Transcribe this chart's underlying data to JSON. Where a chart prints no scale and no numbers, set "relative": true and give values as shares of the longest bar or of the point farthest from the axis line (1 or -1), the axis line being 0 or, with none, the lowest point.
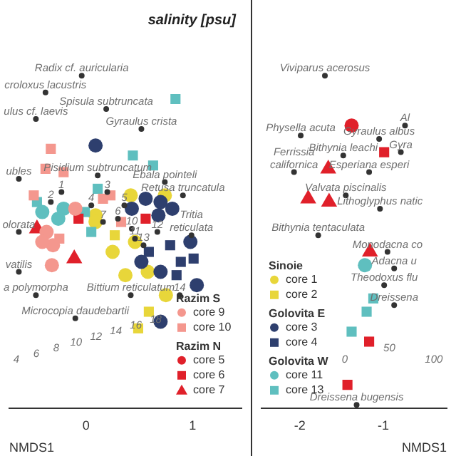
{
  "chart_data": [
    {
      "type": "scatter",
      "title": "salinity [psu]",
      "xlabel": "NMDS1",
      "xlim": [
        -0.72,
        1.46
      ],
      "xticks": [
        0,
        1
      ],
      "relative": true,
      "tick_labels": "x",
      "legend": "bottom right",
      "series": [
        {
          "name": "core 9",
          "color": "#f4978e",
          "marker": "circle",
          "x": [
            -0.1,
            -0.37,
            -0.31,
            -0.32,
            -0.41
          ],
          "values": [
            0.6,
            0.53,
            0.49,
            0.43,
            0.5
          ]
        },
        {
          "name": "core 10",
          "color": "#f4978e",
          "marker": "square",
          "x": [
            -0.33,
            -0.38,
            -0.21,
            0.23,
            0.16,
            -0.49,
            0.33,
            -0.25
          ],
          "values": [
            0.78,
            0.72,
            0.71,
            0.64,
            0.63,
            0.64,
            0.56,
            0.51
          ]
        },
        {
          "name": "core 5",
          "color": "#e0202a",
          "marker": "circle"
        },
        {
          "name": "core 6",
          "color": "#e0202a",
          "marker": "square",
          "x": [
            0.56,
            -0.07
          ],
          "values": [
            0.57,
            0.57
          ]
        },
        {
          "name": "core 7",
          "color": "#e0202a",
          "marker": "triangle",
          "x": [
            -0.46,
            -0.11
          ],
          "values": [
            0.54,
            0.45
          ]
        },
        {
          "color": "#5fbfbf",
          "marker": "circle",
          "x": [
            -0.41,
            -0.21,
            -0.26
          ],
          "values": [
            0.59,
            0.6,
            0.57
          ]
        },
        {
          "color": "#5fbfbf",
          "marker": "square",
          "x": [
            0.84,
            0.44,
            0.63,
            0.11,
            -0.46,
            -0.01,
            0.05
          ],
          "values": [
            0.93,
            0.76,
            0.73,
            0.66,
            0.62,
            0.59,
            0.53
          ]
        },
        {
          "color": "#2e3f6e",
          "marker": "circle",
          "x": [
            0.09,
            0.43,
            0.56,
            0.7,
            0.81,
            0.68,
            0.52,
            0.7,
            0.98,
            1.04,
            0.7
          ],
          "values": [
            0.79,
            0.6,
            0.63,
            0.62,
            0.6,
            0.58,
            0.44,
            0.41,
            0.5,
            0.37,
            0.26
          ]
        },
        {
          "color": "#2e3f6e",
          "marker": "square",
          "x": [
            0.59,
            0.79,
            0.89,
            1.01,
            0.85
          ],
          "values": [
            0.47,
            0.49,
            0.44,
            0.45,
            0.4
          ]
        },
        {
          "color": "#e8d63a",
          "marker": "circle",
          "x": [
            0.09,
            0.09,
            0.42,
            0.52,
            0.74,
            0.25,
            0.46,
            0.37,
            0.58,
            0.75
          ],
          "values": [
            0.58,
            0.56,
            0.64,
            null,
            0.64,
            0.47,
            0.5,
            0.4,
            0.41,
            0.34
          ]
        },
        {
          "color": "#e8d63a",
          "marker": "square",
          "x": [
            0.27,
            0.59,
            0.49
          ],
          "values": [
            0.52,
            0.29,
            0.24
          ]
        },
        {
          "color": "#333333",
          "marker": "circle",
          "x": [
            -0.04,
            -0.38,
            -0.47,
            0.19,
            0.52,
            0.11,
            -0.63,
            0.74,
            0.91,
            0.99,
            -0.63,
            -0.63,
            -0.47,
            -0.1,
            0.42,
            -0.23,
            -0.33,
            0.2,
            0.05,
            0.36,
            0.3,
            0.16,
            0.43,
            0.46,
            0.67,
            0.54,
            0.88
          ],
          "values": [
            1.0,
            0.95,
            0.87,
            0.9,
            0.84,
            0.7,
            0.69,
            0.68,
            0.64,
            0.52,
            0.53,
            0.41,
            0.34,
            0.27,
            0.34,
            0.65,
            0.62,
            0.65,
            0.61,
            0.61,
            0.57,
            0.56,
            0.54,
            0.51,
            0.53,
            0.49,
            0.34
          ]
        }
      ],
      "annotations": [
        "Razim S",
        "Razim N",
        "4",
        "6",
        "8",
        "10",
        "12",
        "14",
        "16",
        "18",
        {
          "text": "Radix cf. auricularia",
          "x": -0.04,
          "y": 1.0
        },
        {
          "text": "croloxus lacustris",
          "x": -0.38,
          "y": 0.95
        },
        {
          "text": "ulus cf. laevis",
          "x": -0.47,
          "y": 0.87
        },
        {
          "text": "Spisula subtruncata",
          "x": 0.19,
          "y": 0.9
        },
        {
          "text": "Gyraulus crista",
          "x": 0.52,
          "y": 0.84
        },
        {
          "text": "Pisidium subtruncatum",
          "x": 0.11,
          "y": 0.7
        },
        {
          "text": "ubles",
          "x": -0.63,
          "y": 0.69
        },
        {
          "text": "Ebala pointeli",
          "x": 0.74,
          "y": 0.68
        },
        {
          "text": "Retusa truncatula",
          "x": 0.91,
          "y": 0.64
        },
        {
          "text": "Tritia\nreticulata",
          "x": 0.99,
          "y": 0.52
        },
        {
          "text": "olorata",
          "x": -0.63,
          "y": 0.53
        },
        {
          "text": "vatilis",
          "x": -0.63,
          "y": 0.41
        },
        {
          "text": "a polymorpha",
          "x": -0.47,
          "y": 0.34
        },
        {
          "text": "Microcopia daudebartii",
          "x": -0.1,
          "y": 0.27
        },
        {
          "text": "Bittium reticulatum",
          "x": 0.42,
          "y": 0.34
        },
        {
          "text": "1",
          "x": -0.23,
          "y": 0.65
        },
        {
          "text": "2",
          "x": -0.33,
          "y": 0.62
        },
        {
          "text": "3",
          "x": 0.2,
          "y": 0.65
        },
        {
          "text": "4",
          "x": 0.05,
          "y": 0.61
        },
        {
          "text": "5",
          "x": 0.36,
          "y": 0.61
        },
        {
          "text": "6",
          "x": 0.3,
          "y": 0.57
        },
        {
          "text": "7",
          "x": 0.16,
          "y": 0.56
        },
        {
          "text": "10",
          "x": 0.43,
          "y": 0.54
        },
        {
          "text": "11",
          "x": 0.46,
          "y": 0.51
        },
        {
          "text": "12",
          "x": 0.67,
          "y": 0.53
        },
        {
          "text": "13",
          "x": 0.54,
          "y": 0.49
        },
        {
          "text": "14",
          "x": 0.88,
          "y": 0.34
        }
      ]
    },
    {
      "type": "scatter",
      "xlabel": "NMDS1",
      "xlim": [
        -2.46,
        -0.24
      ],
      "xticks": [
        -2,
        -1
      ],
      "relative": true,
      "tick_labels": "x",
      "legend": "bottom left",
      "series": [
        {
          "name": "core 1",
          "color": "#e8d63a",
          "marker": "circle"
        },
        {
          "name": "core 2",
          "color": "#e8d63a",
          "marker": "square"
        },
        {
          "name": "core 3",
          "color": "#2e3f6e",
          "marker": "circle"
        },
        {
          "name": "core 4",
          "color": "#2e3f6e",
          "marker": "square"
        },
        {
          "name": "core 11",
          "color": "#5fbfbf",
          "marker": "circle",
          "x": [
            -1.22
          ],
          "values": [
            0.43
          ]
        },
        {
          "name": "core 13",
          "color": "#5fbfbf",
          "marker": "square",
          "x": [
            -1.12,
            -1.2,
            -1.38
          ],
          "values": [
            0.33,
            0.29,
            0.23
          ]
        },
        {
          "color": "#e0202a",
          "marker": "circle",
          "x": [
            -1.38
          ],
          "values": [
            0.85
          ]
        },
        {
          "color": "#e0202a",
          "marker": "square",
          "x": [
            -0.99,
            -1.17,
            -1.43
          ],
          "values": [
            0.77,
            0.2,
            0.07
          ]
        },
        {
          "color": "#e0202a",
          "marker": "triangle",
          "x": [
            -1.66,
            -1.9,
            -1.65,
            -1.16
          ],
          "values": [
            0.72,
            0.63,
            0.62,
            0.47
          ]
        },
        {
          "color": "#333333",
          "marker": "circle",
          "x": [
            -1.7,
            -1.99,
            -1.05,
            -0.74,
            -1.48,
            -0.79,
            -2.07,
            -1.17,
            -1.45,
            -1.04,
            -1.78,
            -0.95,
            -0.87,
            -0.99,
            -0.87,
            -1.32
          ],
          "values": [
            1.0,
            0.82,
            0.81,
            0.85,
            0.76,
            0.77,
            0.71,
            0.71,
            0.64,
            0.6,
            0.52,
            0.47,
            0.42,
            0.37,
            0.31,
            0.01
          ]
        }
      ],
      "annotations": [
        "Sinoie",
        "Golovita E",
        "Golovita W",
        "0",
        "50",
        "100",
        {
          "text": "Viviparus acerosus",
          "x": -1.7,
          "y": 1.0
        },
        {
          "text": "Physella acuta",
          "x": -1.99,
          "y": 0.82
        },
        {
          "text": "Gyraulus albus",
          "x": -1.05,
          "y": 0.81
        },
        {
          "text": "Al",
          "x": -0.74,
          "y": 0.85
        },
        {
          "text": "Bithynia leachi",
          "x": -1.48,
          "y": 0.76
        },
        {
          "text": "Gyra",
          "x": -0.79,
          "y": 0.77
        },
        {
          "text": "Ferrissia\ncalifornica",
          "x": -2.07,
          "y": 0.71
        },
        {
          "text": "Esperiana esperi",
          "x": -1.17,
          "y": 0.71
        },
        {
          "text": "Valvata piscinalis",
          "x": -1.45,
          "y": 0.64
        },
        {
          "text": "Lithoglyphus natic",
          "x": -1.04,
          "y": 0.6
        },
        {
          "text": "Bithynia tentaculata",
          "x": -1.78,
          "y": 0.52
        },
        {
          "text": "Monodacna co",
          "x": -0.95,
          "y": 0.47
        },
        {
          "text": "Adacna u",
          "x": -0.87,
          "y": 0.42
        },
        {
          "text": "Theodoxus flu",
          "x": -0.99,
          "y": 0.37
        },
        {
          "text": "Dreissena",
          "x": -0.87,
          "y": 0.31
        },
        {
          "text": "Dreissena bugensis",
          "x": -1.32,
          "y": 0.01
        }
      ]
    }
  ]
}
